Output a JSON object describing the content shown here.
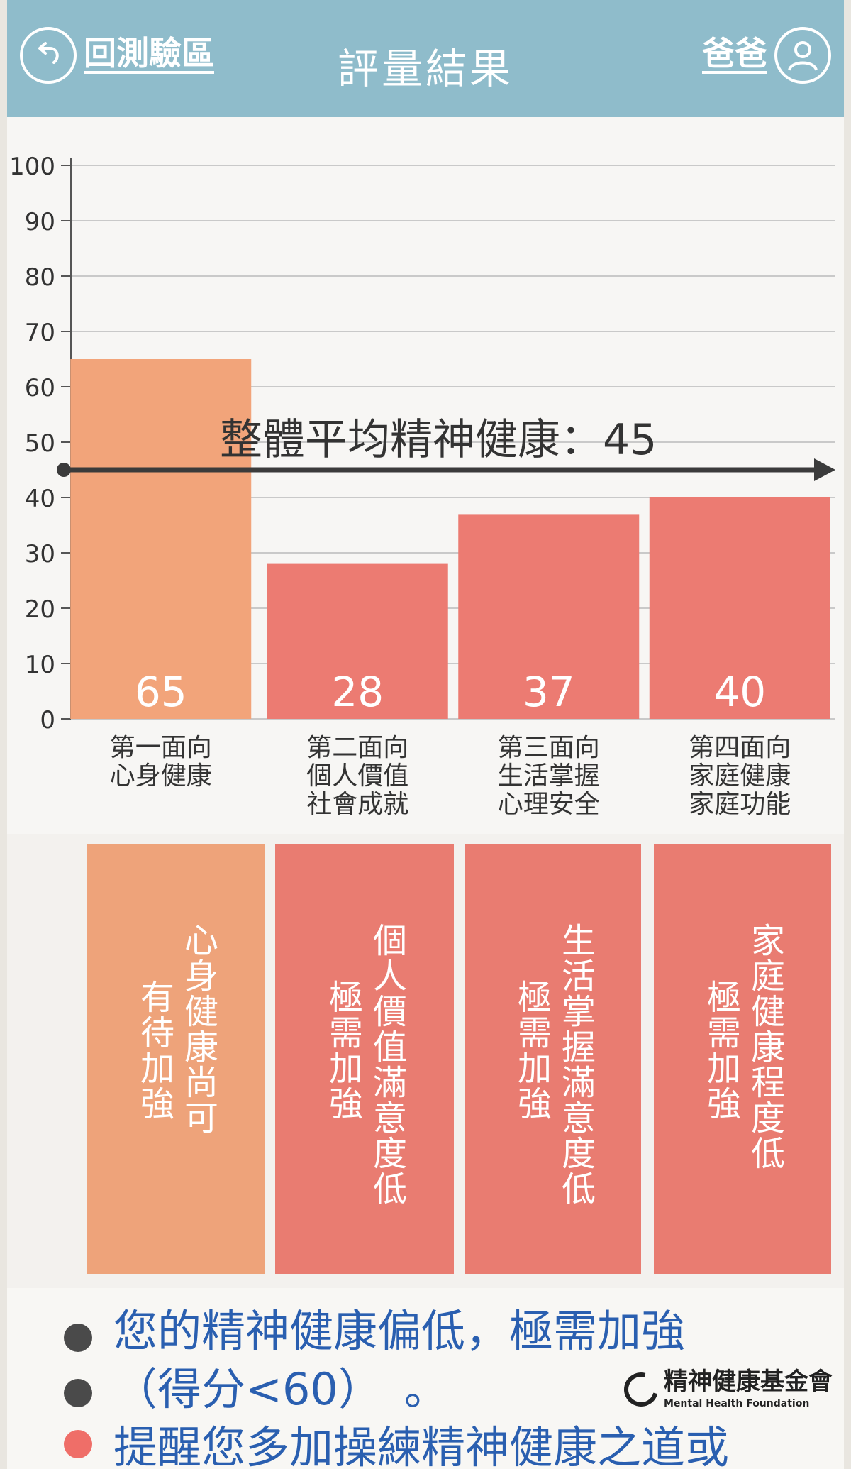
{
  "header": {
    "back_label": "回測驗區",
    "title": "評量結果",
    "user_label": "爸爸"
  },
  "colors": {
    "header": "#8fbccb",
    "bar_orange": "#f2a47a",
    "bar_red": "#ec7b72",
    "card_orange": "#eea37a",
    "card_red": "#e97c71",
    "avg_line": "#3b3b3b",
    "message": "#2a5fb0"
  },
  "chart_data": {
    "type": "bar",
    "ylim": [
      0,
      100
    ],
    "y_ticks": [
      0,
      10,
      20,
      30,
      40,
      50,
      60,
      70,
      80,
      90,
      100
    ],
    "grid": true,
    "categories": [
      [
        "第一面向",
        "心身健康"
      ],
      [
        "第二面向",
        "個人價值",
        "社會成就"
      ],
      [
        "第三面向",
        "生活掌握",
        "心理安全"
      ],
      [
        "第四面向",
        "家庭健康",
        "家庭功能"
      ]
    ],
    "values": [
      65,
      28,
      37,
      40
    ],
    "bar_colors": [
      "#f2a47a",
      "#ec7b72",
      "#ec7b72",
      "#ec7b72"
    ],
    "average": {
      "label": "整體平均精神健康：45",
      "value": 45
    }
  },
  "cards": [
    {
      "lines": [
        "心身健康尚可",
        "有待加強"
      ],
      "color": "#eea37a"
    },
    {
      "lines": [
        "個人價值滿意度低",
        "極需加強"
      ],
      "color": "#e97c71"
    },
    {
      "lines": [
        "生活掌握滿意度低",
        "極需加強"
      ],
      "color": "#e97c71"
    },
    {
      "lines": [
        "家庭健康程度低",
        "極需加強"
      ],
      "color": "#e97c71"
    }
  ],
  "footer": {
    "lines": [
      "您的精神健康偏低，極需加強",
      "（得分<60）　。",
      "提醒您多加操練精神健康之道或"
    ],
    "dot_colors": [
      "#4a4a4a",
      "#4a4a4a",
      "#ef6e68"
    ],
    "logo": {
      "zh": "精神健康基金會",
      "en": "Mental Health Foundation"
    }
  }
}
